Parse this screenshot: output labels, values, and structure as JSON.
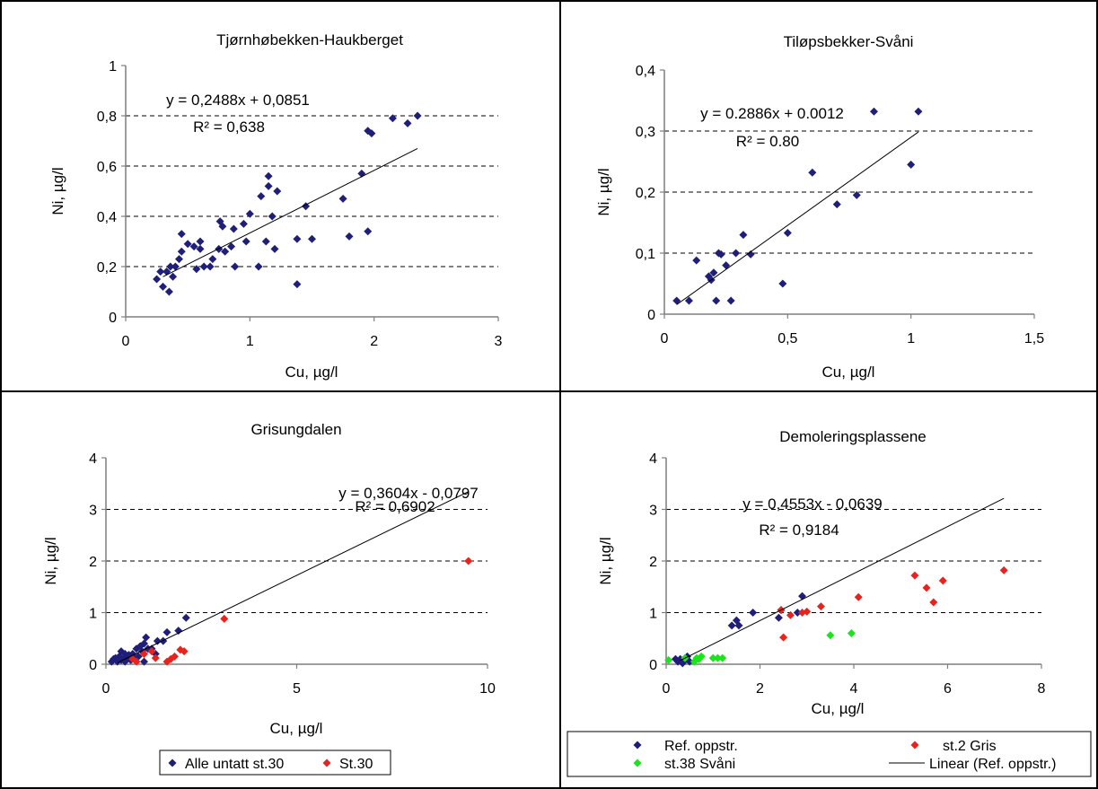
{
  "chart_data": [
    {
      "type": "scatter",
      "title": "Tjørnhøbekken-Haukberget",
      "xlabel": "Cu, µg/l",
      "ylabel": "Ni, µg/l",
      "xlim": [
        0,
        3
      ],
      "ylim": [
        0,
        1
      ],
      "xticks": [
        0,
        1,
        2,
        3
      ],
      "yticks": [
        0,
        0.2,
        0.4,
        0.6,
        0.8,
        1
      ],
      "xtick_labels": [
        "0",
        "1",
        "2",
        "3"
      ],
      "ytick_labels": [
        "0",
        "0,2",
        "0,4",
        "0,6",
        "0,8",
        "1"
      ],
      "grid": "horizontal-dashed",
      "equation": "y = 0,2488x + 0,0851",
      "r2": "R² = 0,638",
      "trendline": {
        "slope": 0.2488,
        "intercept": 0.0851,
        "x_range": [
          0.3,
          2.35
        ]
      },
      "series": [
        {
          "color": "#1f1f7a",
          "points": [
            [
              0.25,
              0.15
            ],
            [
              0.28,
              0.18
            ],
            [
              0.3,
              0.12
            ],
            [
              0.33,
              0.18
            ],
            [
              0.35,
              0.1
            ],
            [
              0.36,
              0.2
            ],
            [
              0.38,
              0.16
            ],
            [
              0.4,
              0.2
            ],
            [
              0.43,
              0.23
            ],
            [
              0.45,
              0.26
            ],
            [
              0.45,
              0.33
            ],
            [
              0.5,
              0.29
            ],
            [
              0.55,
              0.28
            ],
            [
              0.57,
              0.19
            ],
            [
              0.6,
              0.3
            ],
            [
              0.6,
              0.27
            ],
            [
              0.63,
              0.2
            ],
            [
              0.68,
              0.2
            ],
            [
              0.7,
              0.23
            ],
            [
              0.75,
              0.27
            ],
            [
              0.76,
              0.38
            ],
            [
              0.78,
              0.36
            ],
            [
              0.8,
              0.26
            ],
            [
              0.85,
              0.28
            ],
            [
              0.87,
              0.35
            ],
            [
              0.88,
              0.2
            ],
            [
              0.95,
              0.37
            ],
            [
              0.97,
              0.3
            ],
            [
              1.0,
              0.41
            ],
            [
              1.07,
              0.2
            ],
            [
              1.09,
              0.48
            ],
            [
              1.13,
              0.3
            ],
            [
              1.15,
              0.56
            ],
            [
              1.15,
              0.52
            ],
            [
              1.18,
              0.4
            ],
            [
              1.2,
              0.27
            ],
            [
              1.22,
              0.5
            ],
            [
              1.38,
              0.13
            ],
            [
              1.38,
              0.31
            ],
            [
              1.45,
              0.44
            ],
            [
              1.5,
              0.31
            ],
            [
              1.75,
              0.47
            ],
            [
              1.8,
              0.32
            ],
            [
              1.9,
              0.57
            ],
            [
              1.95,
              0.34
            ],
            [
              1.95,
              0.74
            ],
            [
              1.98,
              0.73
            ],
            [
              2.15,
              0.79
            ],
            [
              2.27,
              0.77
            ],
            [
              2.35,
              0.8
            ]
          ]
        }
      ]
    },
    {
      "type": "scatter",
      "title": "Tiløpsbekker-Svåni",
      "xlabel": "Cu, µg/l",
      "ylabel": "Ni, µg/l",
      "xlim": [
        0,
        1.5
      ],
      "ylim": [
        0,
        0.4
      ],
      "xticks": [
        0,
        0.5,
        1,
        1.5
      ],
      "yticks": [
        0,
        0.1,
        0.2,
        0.3,
        0.4
      ],
      "xtick_labels": [
        "0",
        "0,5",
        "1",
        "1,5"
      ],
      "ytick_labels": [
        "0",
        "0,1",
        "0,2",
        "0,3",
        "0,4"
      ],
      "grid": "horizontal-dashed",
      "equation": "y = 0.2886x + 0.0012",
      "r2": "R² = 0.80",
      "trendline": {
        "slope": 0.2886,
        "intercept": 0.0012,
        "x_range": [
          0.05,
          1.03
        ]
      },
      "series": [
        {
          "color": "#1f1f7a",
          "points": [
            [
              0.05,
              0.022
            ],
            [
              0.1,
              0.022
            ],
            [
              0.13,
              0.088
            ],
            [
              0.18,
              0.062
            ],
            [
              0.19,
              0.056
            ],
            [
              0.2,
              0.068
            ],
            [
              0.21,
              0.022
            ],
            [
              0.22,
              0.1
            ],
            [
              0.23,
              0.098
            ],
            [
              0.25,
              0.08
            ],
            [
              0.27,
              0.022
            ],
            [
              0.29,
              0.1
            ],
            [
              0.32,
              0.13
            ],
            [
              0.35,
              0.098
            ],
            [
              0.48,
              0.05
            ],
            [
              0.5,
              0.133
            ],
            [
              0.6,
              0.232
            ],
            [
              0.7,
              0.18
            ],
            [
              0.78,
              0.195
            ],
            [
              0.85,
              0.332
            ],
            [
              1.0,
              0.245
            ],
            [
              1.03,
              0.332
            ]
          ]
        }
      ]
    },
    {
      "type": "scatter",
      "title": "Grisungdalen",
      "xlabel": "Cu, µg/l",
      "ylabel": "Ni, µg/l",
      "xlim": [
        0,
        10
      ],
      "ylim": [
        0,
        4
      ],
      "xticks": [
        0,
        5,
        10
      ],
      "yticks": [
        0,
        1,
        2,
        3,
        4
      ],
      "xtick_labels": [
        "0",
        "5",
        "10"
      ],
      "ytick_labels": [
        "0",
        "1",
        "2",
        "3",
        "4"
      ],
      "grid": "horizontal-dashed",
      "equation": "y = 0,3604x - 0,0797",
      "r2": "R² = 0,6902",
      "trendline": {
        "slope": 0.3604,
        "intercept": -0.0797,
        "x_range": [
          0.3,
          9.5
        ]
      },
      "legend_position": "bottom",
      "series": [
        {
          "name": "Alle untatt st.30",
          "color": "#1f1f7a",
          "points": [
            [
              0.15,
              0.05
            ],
            [
              0.2,
              0.1
            ],
            [
              0.25,
              0.12
            ],
            [
              0.3,
              0.05
            ],
            [
              0.35,
              0.15
            ],
            [
              0.4,
              0.08
            ],
            [
              0.4,
              0.25
            ],
            [
              0.45,
              0.1
            ],
            [
              0.5,
              0.05
            ],
            [
              0.5,
              0.2
            ],
            [
              0.55,
              0.12
            ],
            [
              0.6,
              0.18
            ],
            [
              0.65,
              0.08
            ],
            [
              0.7,
              0.2
            ],
            [
              0.75,
              0.12
            ],
            [
              0.8,
              0.3
            ],
            [
              0.85,
              0.15
            ],
            [
              0.9,
              0.35
            ],
            [
              0.95,
              0.25
            ],
            [
              1.0,
              0.4
            ],
            [
              1.0,
              0.05
            ],
            [
              1.05,
              0.52
            ],
            [
              1.1,
              0.3
            ],
            [
              1.2,
              0.3
            ],
            [
              1.3,
              0.2
            ],
            [
              1.35,
              0.45
            ],
            [
              1.5,
              0.45
            ],
            [
              1.6,
              0.62
            ],
            [
              1.9,
              0.65
            ],
            [
              2.1,
              0.9
            ]
          ]
        },
        {
          "name": "St.30",
          "color": "#e8231e",
          "points": [
            [
              0.7,
              0.1
            ],
            [
              0.8,
              0.05
            ],
            [
              1.0,
              0.2
            ],
            [
              1.2,
              0.25
            ],
            [
              1.3,
              0.12
            ],
            [
              1.6,
              0.05
            ],
            [
              1.7,
              0.1
            ],
            [
              1.8,
              0.15
            ],
            [
              1.95,
              0.28
            ],
            [
              2.05,
              0.25
            ],
            [
              3.1,
              0.88
            ],
            [
              9.5,
              2.0
            ]
          ]
        }
      ]
    },
    {
      "type": "scatter",
      "title": "Demoleringsplassene",
      "xlabel": "Cu, µg/l",
      "ylabel": "Ni, µg/l",
      "xlim": [
        0,
        8
      ],
      "ylim": [
        0,
        4
      ],
      "xticks": [
        0,
        2,
        4,
        6,
        8
      ],
      "yticks": [
        0,
        1,
        2,
        3,
        4
      ],
      "xtick_labels": [
        "0",
        "2",
        "4",
        "6",
        "8"
      ],
      "ytick_labels": [
        "0",
        "1",
        "2",
        "3",
        "4"
      ],
      "grid": "horizontal-dashed",
      "equation": "y = 0,4553x - 0,0639",
      "r2": "R² = 0,9184",
      "trendline": {
        "slope": 0.4553,
        "intercept": -0.0639,
        "x_range": [
          0.3,
          7.2
        ]
      },
      "legend_position": "bottom",
      "legend_line_label": "Linear (Ref. oppstr.)",
      "series": [
        {
          "name": "Ref. oppstr.",
          "color": "#1f1f7a",
          "points": [
            [
              0.2,
              0.1
            ],
            [
              0.25,
              0.05
            ],
            [
              0.3,
              0.1
            ],
            [
              0.35,
              0.02
            ],
            [
              0.4,
              0.08
            ],
            [
              0.45,
              0.15
            ],
            [
              0.5,
              0.05
            ],
            [
              1.4,
              0.75
            ],
            [
              1.5,
              0.85
            ],
            [
              1.55,
              0.75
            ],
            [
              1.85,
              1.0
            ],
            [
              2.4,
              0.9
            ],
            [
              2.45,
              1.05
            ],
            [
              2.8,
              1.0
            ],
            [
              2.9,
              1.32
            ]
          ]
        },
        {
          "name": "st.2 Gris",
          "color": "#e8231e",
          "points": [
            [
              2.45,
              1.05
            ],
            [
              2.5,
              0.52
            ],
            [
              2.65,
              0.95
            ],
            [
              2.9,
              1.0
            ],
            [
              3.0,
              1.02
            ],
            [
              3.3,
              1.12
            ],
            [
              4.1,
              1.3
            ],
            [
              5.3,
              1.72
            ],
            [
              5.55,
              1.48
            ],
            [
              5.7,
              1.2
            ],
            [
              5.9,
              1.62
            ],
            [
              7.2,
              1.82
            ]
          ]
        },
        {
          "name": "st.38 Svåni",
          "color": "#19e619",
          "points": [
            [
              0.05,
              0.08
            ],
            [
              0.4,
              0.12
            ],
            [
              0.6,
              0.05
            ],
            [
              0.65,
              0.12
            ],
            [
              0.7,
              0.1
            ],
            [
              0.75,
              0.15
            ],
            [
              1.0,
              0.12
            ],
            [
              1.1,
              0.12
            ],
            [
              1.2,
              0.12
            ],
            [
              3.5,
              0.56
            ],
            [
              3.95,
              0.6
            ]
          ]
        }
      ]
    }
  ]
}
